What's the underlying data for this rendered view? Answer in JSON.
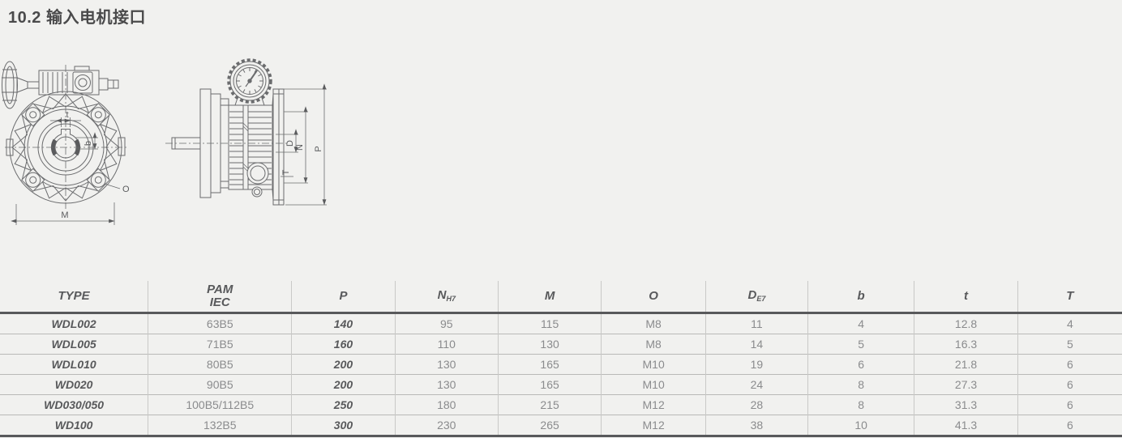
{
  "page": {
    "title": "10.2 输入电机接口"
  },
  "drawing": {
    "front_view": {
      "dims": {
        "t": "t",
        "b": "b",
        "o": "O",
        "m": "M"
      }
    },
    "side_view": {
      "dims": {
        "d": "D",
        "n": "N",
        "p": "P",
        "t": "T"
      }
    }
  },
  "table": {
    "columns": [
      {
        "label": "TYPE"
      },
      {
        "label": "PAM",
        "label2": "IEC"
      },
      {
        "label": "P"
      },
      {
        "label": "N",
        "sub": "H7"
      },
      {
        "label": "M"
      },
      {
        "label": "O"
      },
      {
        "label": "D",
        "sub": "E7"
      },
      {
        "label": "b"
      },
      {
        "label": "t"
      },
      {
        "label": "T"
      }
    ],
    "rows": [
      [
        "WDL002",
        "63B5",
        "140",
        "95",
        "115",
        "M8",
        "11",
        "4",
        "12.8",
        "4"
      ],
      [
        "WDL005",
        "71B5",
        "160",
        "110",
        "130",
        "M8",
        "14",
        "5",
        "16.3",
        "5"
      ],
      [
        "WDL010",
        "80B5",
        "200",
        "130",
        "165",
        "M10",
        "19",
        "6",
        "21.8",
        "6"
      ],
      [
        "WD020",
        "90B5",
        "200",
        "130",
        "165",
        "M10",
        "24",
        "8",
        "27.3",
        "6"
      ],
      [
        "WD030/050",
        "100B5/112B5",
        "250",
        "180",
        "215",
        "M12",
        "28",
        "8",
        "31.3",
        "6"
      ],
      [
        "WD100",
        "132B5",
        "300",
        "230",
        "265",
        "M12",
        "38",
        "10",
        "41.3",
        "6"
      ]
    ]
  },
  "colors": {
    "background": "#f1f1ef",
    "line_dark": "#58595b",
    "line_light": "#b9b9b7",
    "text_dark": "#58595b",
    "text_gray": "#8a8b8d",
    "drawing_stroke": "#6b6c6e"
  }
}
